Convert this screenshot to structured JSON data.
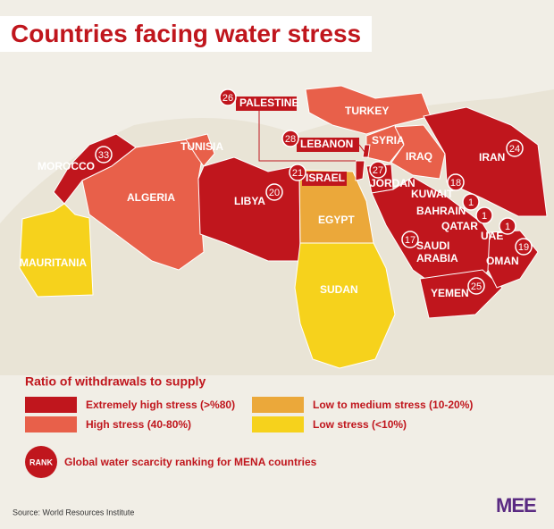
{
  "title": "Countries facing water stress",
  "countries": [
    {
      "name": "MOROCCO",
      "rank": 33,
      "color": "#c0161d"
    },
    {
      "name": "TUNISIA",
      "color": "#e8604a"
    },
    {
      "name": "ALGERIA",
      "color": "#e8604a"
    },
    {
      "name": "LIBYA",
      "rank": 20,
      "color": "#c0161d"
    },
    {
      "name": "MAURITANIA",
      "color": "#f6d21c"
    },
    {
      "name": "EGYPT",
      "color": "#eba83a"
    },
    {
      "name": "SUDAN",
      "color": "#f6d21c"
    },
    {
      "name": "TURKEY",
      "color": "#e8604a"
    },
    {
      "name": "SYRIA",
      "color": "#e8604a"
    },
    {
      "name": "IRAQ",
      "color": "#e8604a"
    },
    {
      "name": "JORDAN",
      "rank": 27,
      "color": "#c0161d"
    },
    {
      "name": "SAUDI ARABIA",
      "rank": 17,
      "color": "#c0161d"
    },
    {
      "name": "IRAN",
      "rank": 24,
      "color": "#c0161d"
    },
    {
      "name": "YEMEN",
      "rank": 25,
      "color": "#c0161d"
    },
    {
      "name": "OMAN",
      "rank": 19,
      "color": "#c0161d"
    },
    {
      "name": "ISRAEL",
      "rank": 21,
      "color": "#c0161d"
    },
    {
      "name": "PALESTINE",
      "rank": 26,
      "color": "#c0161d"
    },
    {
      "name": "LEBANON",
      "rank": 28,
      "color": "#c0161d"
    },
    {
      "name": "KUWAIT",
      "rank": 18,
      "color": "#c0161d"
    },
    {
      "name": "BAHRAIN",
      "rank": 1,
      "color": "#c0161d"
    },
    {
      "name": "QATAR",
      "rank": 1,
      "color": "#c0161d"
    },
    {
      "name": "UAE",
      "rank": 1,
      "color": "#c0161d"
    }
  ],
  "legend": {
    "title": "Ratio of withdrawals to supply",
    "items": [
      {
        "label": "Extremely high stress (>%80)",
        "color": "#c0161d"
      },
      {
        "label": "High stress (40-80%)",
        "color": "#e8604a"
      },
      {
        "label": "Low to medium stress (10-20%)",
        "color": "#eba83a"
      },
      {
        "label": "Low stress (<10%)",
        "color": "#f6d21c"
      }
    ],
    "rank_badge": "RANK",
    "rank_note": "Global water scarcity ranking for MENA countries"
  },
  "source": "Source: World Resources Institute",
  "logo": "MEE"
}
